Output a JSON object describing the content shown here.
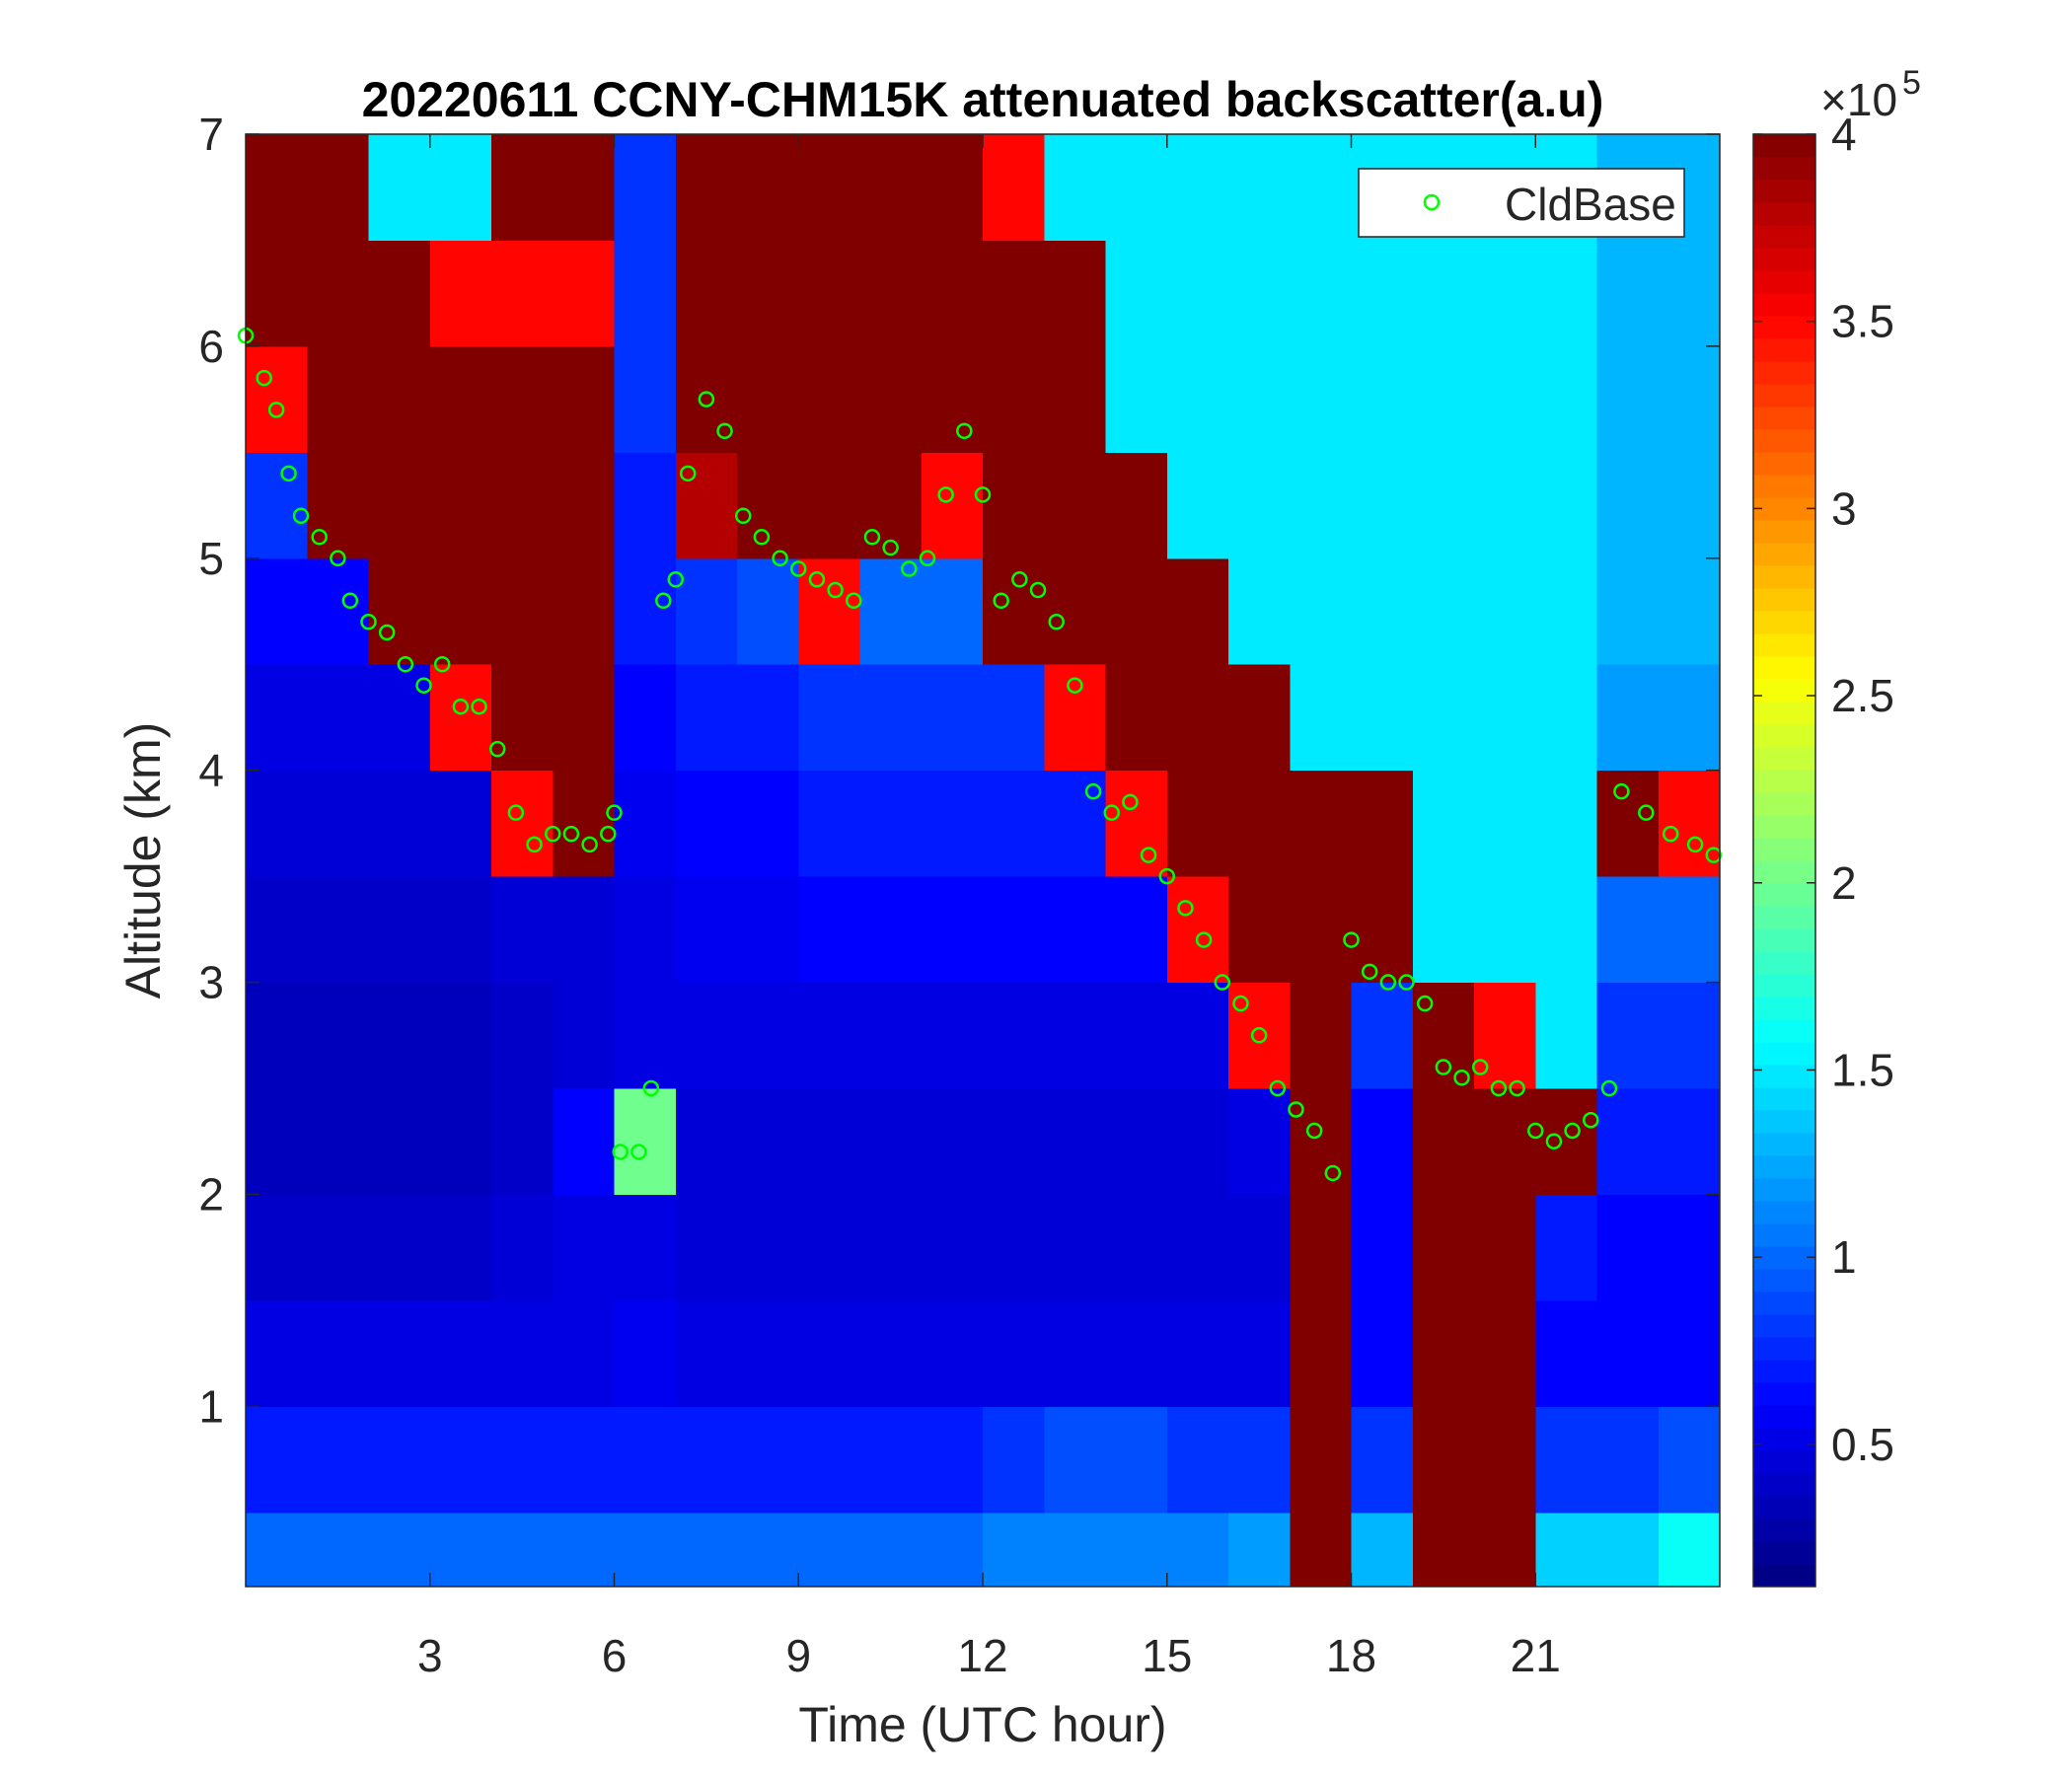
{
  "chart_data": {
    "type": "heatmap",
    "title": "20220611 CCNY-CHM15K attenuated backscatter(a.u)",
    "x_label": "Time (UTC hour)",
    "y_label": "Altitude (km)",
    "xlim": [
      0,
      24
    ],
    "ylim": [
      0.15,
      7
    ],
    "xticks": [
      3,
      6,
      9,
      12,
      15,
      18,
      21
    ],
    "yticks": [
      1,
      2,
      3,
      4,
      5,
      6,
      7
    ],
    "colormap": "jet",
    "clim": [
      0.12,
      4
    ],
    "colorbar_ticks": [
      0.5,
      1,
      1.5,
      2,
      2.5,
      3,
      3.5,
      4
    ],
    "colorbar_multiplier": "×10",
    "colorbar_exponent": 5,
    "legend": "top-right",
    "x_edges": [
      0,
      1,
      2,
      3,
      4,
      5,
      6,
      7,
      8,
      9,
      10,
      11,
      12,
      13,
      14,
      15,
      16,
      17,
      18,
      19,
      20,
      21,
      22,
      23,
      24
    ],
    "y_edges": [
      0.15,
      0.5,
      1,
      1.5,
      2,
      2.5,
      3,
      3.5,
      4,
      4.5,
      5,
      5.5,
      6,
      6.5,
      7
    ],
    "z": [
      [
        1.0,
        1.0,
        1.0,
        1.0,
        1.0,
        1.0,
        1.0,
        1.0,
        1.0,
        1.0,
        1.0,
        1.0,
        1.1,
        1.1,
        1.1,
        1.1,
        1.2,
        4,
        1.3,
        4,
        4,
        1.4,
        1.4,
        1.6
      ],
      [
        0.7,
        0.7,
        0.7,
        0.7,
        0.7,
        0.7,
        0.7,
        0.7,
        0.7,
        0.7,
        0.7,
        0.7,
        0.8,
        0.9,
        0.9,
        0.8,
        0.8,
        4,
        0.8,
        4,
        4,
        0.8,
        0.8,
        0.9
      ],
      [
        0.5,
        0.5,
        0.5,
        0.5,
        0.5,
        0.5,
        0.55,
        0.5,
        0.5,
        0.5,
        0.5,
        0.5,
        0.5,
        0.5,
        0.5,
        0.5,
        0.5,
        4,
        0.6,
        4,
        4,
        0.6,
        0.6,
        0.6
      ],
      [
        0.4,
        0.4,
        0.4,
        0.4,
        0.45,
        0.5,
        0.5,
        0.45,
        0.45,
        0.45,
        0.45,
        0.45,
        0.45,
        0.45,
        0.45,
        0.45,
        0.45,
        4,
        0.6,
        4,
        4,
        0.7,
        0.6,
        0.6
      ],
      [
        0.35,
        0.35,
        0.35,
        0.35,
        0.4,
        0.6,
        2.0,
        0.45,
        0.45,
        0.45,
        0.45,
        0.45,
        0.45,
        0.45,
        0.45,
        0.45,
        0.5,
        4,
        0.6,
        4,
        4,
        4,
        0.7,
        0.7
      ],
      [
        0.35,
        0.35,
        0.35,
        0.35,
        0.4,
        0.45,
        0.5,
        0.5,
        0.5,
        0.5,
        0.5,
        0.5,
        0.5,
        0.5,
        0.5,
        0.5,
        3.5,
        4,
        0.8,
        4,
        3.5,
        1.5,
        0.8,
        0.8
      ],
      [
        0.4,
        0.4,
        0.4,
        0.4,
        0.45,
        0.45,
        0.5,
        0.55,
        0.55,
        0.6,
        0.6,
        0.6,
        0.6,
        0.6,
        0.6,
        3.5,
        4,
        4,
        4,
        1.5,
        1.5,
        1.5,
        1.0,
        1.0
      ],
      [
        0.45,
        0.45,
        0.45,
        0.45,
        3.5,
        4,
        0.55,
        0.6,
        0.6,
        0.7,
        0.7,
        0.7,
        0.7,
        0.7,
        3.5,
        4,
        4,
        4,
        4,
        1.5,
        1.5,
        1.5,
        4,
        3.5
      ],
      [
        0.5,
        0.5,
        0.5,
        3.5,
        4,
        4,
        0.6,
        0.7,
        0.7,
        0.8,
        0.8,
        0.8,
        0.8,
        3.5,
        4,
        4,
        4,
        1.5,
        1.5,
        1.5,
        1.5,
        1.5,
        1.2,
        1.2
      ],
      [
        0.6,
        0.6,
        4,
        4,
        4,
        4,
        0.7,
        0.8,
        0.9,
        3.5,
        1.0,
        1.0,
        4,
        4,
        4,
        4,
        1.5,
        1.5,
        1.5,
        1.5,
        1.5,
        1.5,
        1.3,
        1.3
      ],
      [
        0.8,
        4,
        4,
        4,
        4,
        4,
        0.7,
        3.8,
        4,
        4,
        4,
        3.5,
        4,
        4,
        4,
        1.5,
        1.5,
        1.5,
        1.5,
        1.5,
        1.5,
        1.5,
        1.3,
        1.3
      ],
      [
        3.5,
        4,
        4,
        4,
        4,
        4,
        0.8,
        4,
        4,
        4,
        4,
        4,
        4,
        4,
        1.5,
        1.5,
        1.5,
        1.5,
        1.5,
        1.5,
        1.5,
        1.5,
        1.3,
        1.3
      ],
      [
        4,
        4,
        4,
        3.5,
        3.5,
        3.5,
        0.8,
        4,
        4,
        4,
        4,
        4,
        4,
        4,
        1.5,
        1.5,
        1.5,
        1.5,
        1.5,
        1.5,
        1.5,
        1.5,
        1.3,
        1.3
      ],
      [
        4,
        4,
        1.5,
        1.5,
        4,
        4,
        0.8,
        4,
        4,
        4,
        4,
        4,
        3.5,
        1.5,
        1.5,
        1.5,
        1.5,
        1.5,
        1.5,
        1.5,
        1.5,
        1.5,
        1.3,
        1.3
      ]
    ],
    "series": [
      {
        "name": "CldBase",
        "color": "#00ff00",
        "type": "scatter",
        "x": [
          0.0,
          0.3,
          0.5,
          0.7,
          0.9,
          1.2,
          1.5,
          1.7,
          2.0,
          2.3,
          2.6,
          2.9,
          3.2,
          3.5,
          3.8,
          4.1,
          4.4,
          4.7,
          5.0,
          5.3,
          5.6,
          5.9,
          6.0,
          6.1,
          6.4,
          6.6,
          6.8,
          7.0,
          7.2,
          7.5,
          7.8,
          8.1,
          8.4,
          8.7,
          9.0,
          9.3,
          9.6,
          9.9,
          10.2,
          10.5,
          10.8,
          11.1,
          11.4,
          11.7,
          12.0,
          12.3,
          12.6,
          12.9,
          13.2,
          13.5,
          13.8,
          14.1,
          14.4,
          14.7,
          15.0,
          15.3,
          15.6,
          15.9,
          16.2,
          16.5,
          16.8,
          17.1,
          17.4,
          17.7,
          18.0,
          18.3,
          18.6,
          18.9,
          19.2,
          19.5,
          19.8,
          20.1,
          20.4,
          20.7,
          21.0,
          21.3,
          21.6,
          21.9,
          22.2,
          22.4,
          22.8,
          23.2,
          23.6,
          23.9
        ],
        "values": [
          6.05,
          5.85,
          5.7,
          5.4,
          5.2,
          5.1,
          5.0,
          4.8,
          4.7,
          4.65,
          4.5,
          4.4,
          4.5,
          4.3,
          4.3,
          4.1,
          3.8,
          3.65,
          3.7,
          3.7,
          3.65,
          3.7,
          3.8,
          2.2,
          2.2,
          2.5,
          4.8,
          4.9,
          5.4,
          5.75,
          5.6,
          5.2,
          5.1,
          5.0,
          4.95,
          4.9,
          4.85,
          4.8,
          5.1,
          5.05,
          4.95,
          5.0,
          5.3,
          5.6,
          5.3,
          4.8,
          4.9,
          4.85,
          4.7,
          4.4,
          3.9,
          3.8,
          3.85,
          3.6,
          3.5,
          3.35,
          3.2,
          3.0,
          2.9,
          2.75,
          2.5,
          2.4,
          2.3,
          2.1,
          3.2,
          3.05,
          3.0,
          3.0,
          2.9,
          2.6,
          2.55,
          2.6,
          2.5,
          2.5,
          2.3,
          2.25,
          2.3,
          2.35,
          2.5,
          3.9,
          3.8,
          3.7,
          3.65,
          3.6
        ]
      }
    ]
  }
}
